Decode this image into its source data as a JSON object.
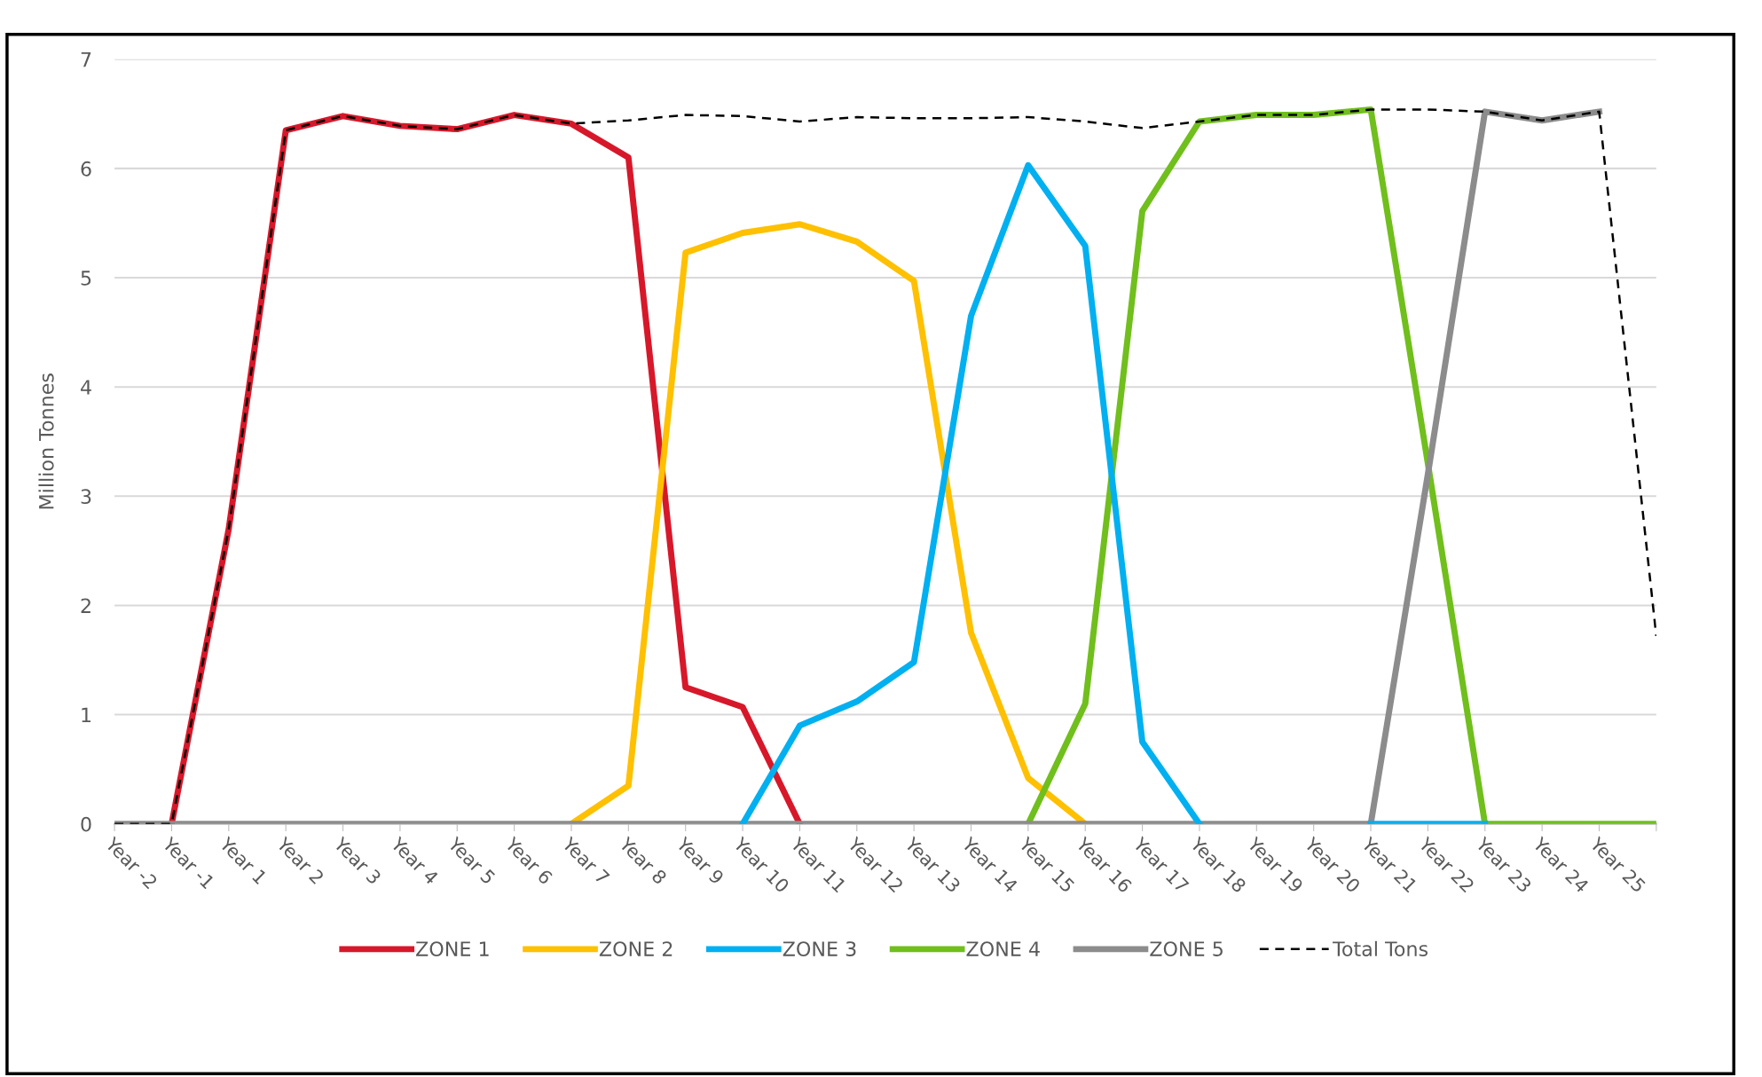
{
  "chart_data": {
    "type": "line",
    "ylabel": "Million Tonnes",
    "categories": [
      "Year -2",
      "Year -1",
      "Year 1",
      "Year 2",
      "Year 3",
      "Year 4",
      "Year 5",
      "Year 6",
      "Year 7",
      "Year 8",
      "Year 9",
      "Year 10",
      "Year 11",
      "Year 12",
      "Year 13",
      "Year 14",
      "Year 15",
      "Year 16",
      "Year 17",
      "Year 18",
      "Year 19",
      "Year 20",
      "Year 21",
      "Year 22",
      "Year 23",
      "Year 24",
      "Year 25",
      null
    ],
    "series": [
      {
        "name": "ZONE 1",
        "color": "#d7182a",
        "values": [
          null,
          0,
          2.7,
          6.35,
          6.48,
          6.39,
          6.36,
          6.49,
          6.41,
          6.1,
          1.25,
          1.07,
          0,
          null,
          null,
          null,
          null,
          null,
          null,
          null,
          null,
          null,
          null,
          null,
          null,
          null,
          null,
          null
        ]
      },
      {
        "name": "ZONE 2",
        "color": "#ffc000",
        "values": [
          null,
          null,
          null,
          null,
          null,
          null,
          null,
          null,
          0,
          0.35,
          5.23,
          5.41,
          5.49,
          5.33,
          4.97,
          1.75,
          0.42,
          0,
          null,
          null,
          null,
          null,
          null,
          null,
          null,
          null,
          null,
          null
        ]
      },
      {
        "name": "ZONE 3",
        "color": "#00b0f0",
        "values": [
          null,
          null,
          null,
          null,
          null,
          null,
          null,
          null,
          null,
          null,
          null,
          0,
          0.9,
          1.12,
          1.48,
          4.65,
          6.03,
          5.29,
          0.75,
          0,
          null,
          null,
          0,
          0,
          0,
          null,
          null,
          null
        ]
      },
      {
        "name": "ZONE 4",
        "color": "#70bf1c",
        "values": [
          null,
          null,
          null,
          null,
          null,
          null,
          null,
          null,
          null,
          null,
          null,
          null,
          null,
          null,
          null,
          null,
          0,
          1.1,
          5.61,
          6.43,
          6.49,
          6.49,
          6.54,
          3.3,
          0,
          0,
          0,
          0
        ]
      },
      {
        "name": "ZONE 5",
        "color": "#8c8c8c",
        "values": [
          0,
          0,
          0,
          0,
          0,
          0,
          0,
          0,
          0,
          0,
          0,
          0,
          0,
          0,
          0,
          0,
          0,
          0,
          0,
          0,
          0,
          0,
          0,
          3.2,
          6.52,
          6.44,
          6.52,
          null
        ]
      },
      {
        "name": "Total Tons",
        "color": "#000000",
        "line_style": "dashed",
        "values": [
          0,
          0,
          2.7,
          6.35,
          6.48,
          6.39,
          6.36,
          6.49,
          6.41,
          6.44,
          6.49,
          6.48,
          6.43,
          6.47,
          6.46,
          6.46,
          6.47,
          6.43,
          6.37,
          6.43,
          6.49,
          6.49,
          6.54,
          6.54,
          6.52,
          6.44,
          6.52,
          1.72
        ]
      }
    ],
    "ylim": [
      0,
      7
    ],
    "yticks": [
      0,
      1,
      2,
      3,
      4,
      5,
      6,
      7
    ],
    "grid": "y",
    "legend": "bottom",
    "marker": "none"
  }
}
